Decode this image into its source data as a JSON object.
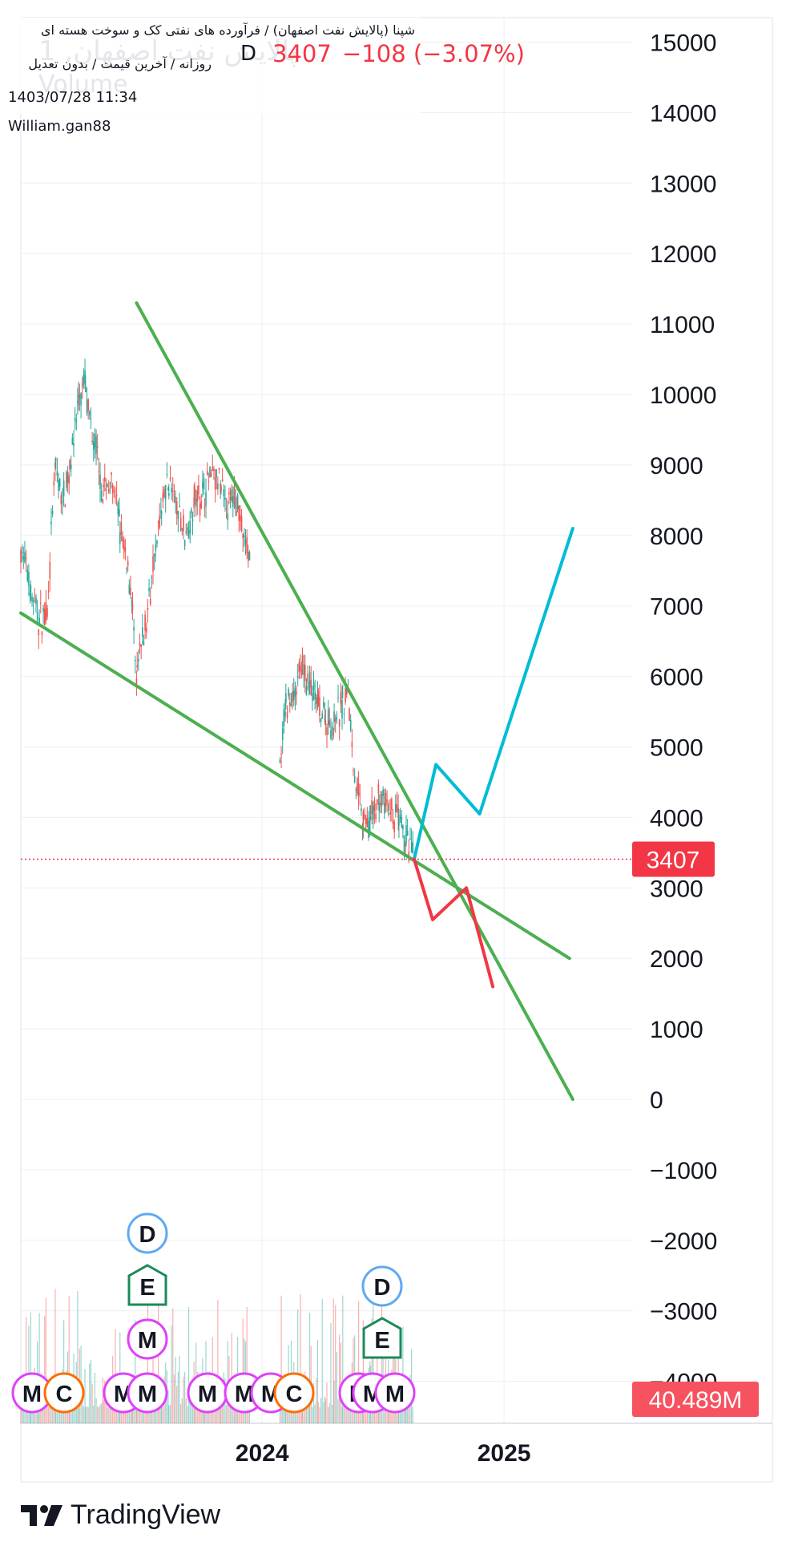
{
  "header": {
    "title": "شپنا (پالایش نفت اصفهان) / فرآورده های نفتی کک و سوخت هسته ای",
    "interval_line": "روزانه / آخرین قیمت / بدون تعدیل",
    "date": "1403/07/28 11:34",
    "author": "William.gan88",
    "symbol_watermark": "پالایش نفت اصفهان, 1",
    "volume_label": "Volume",
    "interval_short": "D",
    "price": "3407",
    "change": "−108 (−3.07%)"
  },
  "colors": {
    "up": "#26a69a",
    "down": "#ef5350",
    "trend_green": "#4caf50",
    "projection_blue": "#00bcd4",
    "projection_red": "#f23645",
    "price_tag": "#f23645",
    "volume_tag": "#f7525f",
    "grid": "#eceff3"
  },
  "chart_data": {
    "type": "line",
    "title": "شپنا (پالایش نفت اصفهان) / فرآورده های نفتی کک و سوخت هسته ای",
    "xlabel": "",
    "ylabel": "",
    "ylim": [
      -4200,
      15400
    ],
    "y_ticks": [
      "15000",
      "14000",
      "13000",
      "12000",
      "11000",
      "10000",
      "9000",
      "8000",
      "7000",
      "6000",
      "5000",
      "4000",
      "3000",
      "2000",
      "1000",
      "0",
      "−1000",
      "−2000",
      "−3000",
      "−4000"
    ],
    "x_ticks": [
      "2024",
      "2025"
    ],
    "x_range": [
      "2023-01-01",
      "2025-07-15"
    ],
    "last_price": 3407,
    "last_price_label": "3407",
    "volume_label": "40.489M",
    "price_series": {
      "name": "Close",
      "points": [
        [
          "2023-01-01",
          7800
        ],
        [
          "2023-01-15",
          7300
        ],
        [
          "2023-01-28",
          6800
        ],
        [
          "2023-02-10",
          6900
        ],
        [
          "2023-02-22",
          9000
        ],
        [
          "2023-03-05",
          8500
        ],
        [
          "2023-03-15",
          8900
        ],
        [
          "2023-03-28",
          9800
        ],
        [
          "2023-04-08",
          10200
        ],
        [
          "2023-04-15",
          9600
        ],
        [
          "2023-04-25",
          9200
        ],
        [
          "2023-05-05",
          8600
        ],
        [
          "2023-05-18",
          8800
        ],
        [
          "2023-05-30",
          8200
        ],
        [
          "2023-06-10",
          7600
        ],
        [
          "2023-06-18",
          7200
        ],
        [
          "2023-06-25",
          5900
        ],
        [
          "2023-07-02",
          6400
        ],
        [
          "2023-07-10",
          6800
        ],
        [
          "2023-07-20",
          7600
        ],
        [
          "2023-08-01",
          8300
        ],
        [
          "2023-08-12",
          8800
        ],
        [
          "2023-08-25",
          8400
        ],
        [
          "2023-09-08",
          8000
        ],
        [
          "2023-09-20",
          8500
        ],
        [
          "2023-10-05",
          8600
        ],
        [
          "2023-10-18",
          8900
        ],
        [
          "2023-10-30",
          8700
        ],
        [
          "2023-11-12",
          8400
        ],
        [
          "2023-11-22",
          8600
        ],
        [
          "2023-12-05",
          7900
        ],
        [
          "2023-12-15",
          7700
        ],
        [
          "2024-01-28",
          4700
        ],
        [
          "2024-02-05",
          5500
        ],
        [
          "2024-02-18",
          5800
        ],
        [
          "2024-03-01",
          6100
        ],
        [
          "2024-03-12",
          5900
        ],
        [
          "2024-03-25",
          5600
        ],
        [
          "2024-04-05",
          5400
        ],
        [
          "2024-04-18",
          5300
        ],
        [
          "2024-05-01",
          5600
        ],
        [
          "2024-05-10",
          5800
        ],
        [
          "2024-05-20",
          4600
        ],
        [
          "2024-06-01",
          4000
        ],
        [
          "2024-06-12",
          3900
        ],
        [
          "2024-06-25",
          4300
        ],
        [
          "2024-07-10",
          4100
        ],
        [
          "2024-07-25",
          3950
        ],
        [
          "2024-08-05",
          3700
        ],
        [
          "2024-08-12",
          3500
        ],
        [
          "2024-08-18",
          3407
        ]
      ]
    },
    "drawings": [
      {
        "name": "upper-trendline",
        "color": "green",
        "points": [
          [
            "2023-06-25",
            11300
          ],
          [
            "2025-04-15",
            0
          ]
        ]
      },
      {
        "name": "lower-trendline",
        "color": "green",
        "points": [
          [
            "2023-01-01",
            6900
          ],
          [
            "2025-04-10",
            2000
          ]
        ]
      },
      {
        "name": "bullish-path",
        "color": "blue",
        "points": [
          [
            "2024-08-18",
            3407
          ],
          [
            "2024-09-20",
            4750
          ],
          [
            "2024-11-25",
            4050
          ],
          [
            "2025-04-15",
            8100
          ]
        ]
      },
      {
        "name": "bearish-path",
        "color": "red",
        "points": [
          [
            "2024-08-18",
            3407
          ],
          [
            "2024-09-15",
            2550
          ],
          [
            "2024-11-05",
            3000
          ],
          [
            "2024-12-15",
            1600
          ]
        ]
      }
    ],
    "events": [
      {
        "label": "M",
        "kind": "magenta"
      },
      {
        "label": "C",
        "kind": "orange"
      },
      {
        "label": "M",
        "kind": "magenta"
      },
      {
        "label": "M",
        "kind": "magenta"
      },
      {
        "label": "M",
        "kind": "magenta"
      },
      {
        "label": "M",
        "kind": "magenta"
      },
      {
        "label": "M",
        "kind": "magenta"
      },
      {
        "label": "C",
        "kind": "orange"
      },
      {
        "label": "M",
        "kind": "magenta"
      },
      {
        "label": "M",
        "kind": "magenta"
      },
      {
        "label": "M",
        "kind": "magenta"
      },
      {
        "label": "D",
        "kind": "blue"
      },
      {
        "label": "E",
        "kind": "green"
      },
      {
        "label": "M",
        "kind": "magenta"
      },
      {
        "label": "D",
        "kind": "blue"
      },
      {
        "label": "E",
        "kind": "green"
      }
    ]
  },
  "brand": {
    "name": "TradingView"
  }
}
